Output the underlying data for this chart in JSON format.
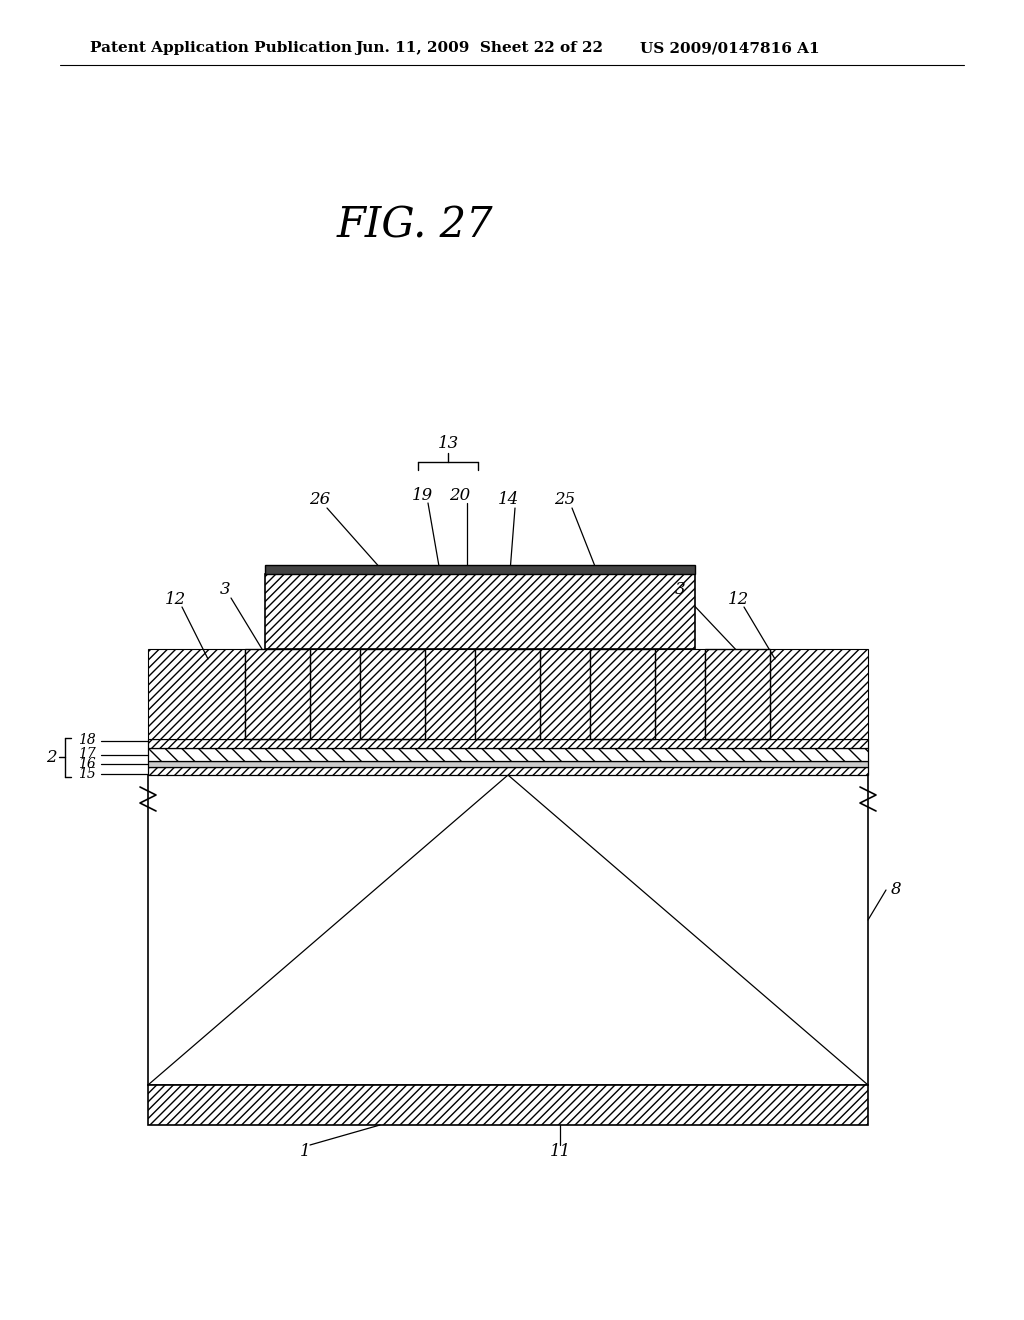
{
  "header_left": "Patent Application Publication",
  "header_mid": "Jun. 11, 2009  Sheet 22 of 22",
  "header_right": "US 2009/0147816 A1",
  "bg_color": "#ffffff",
  "fig_title": "FIG. 27"
}
